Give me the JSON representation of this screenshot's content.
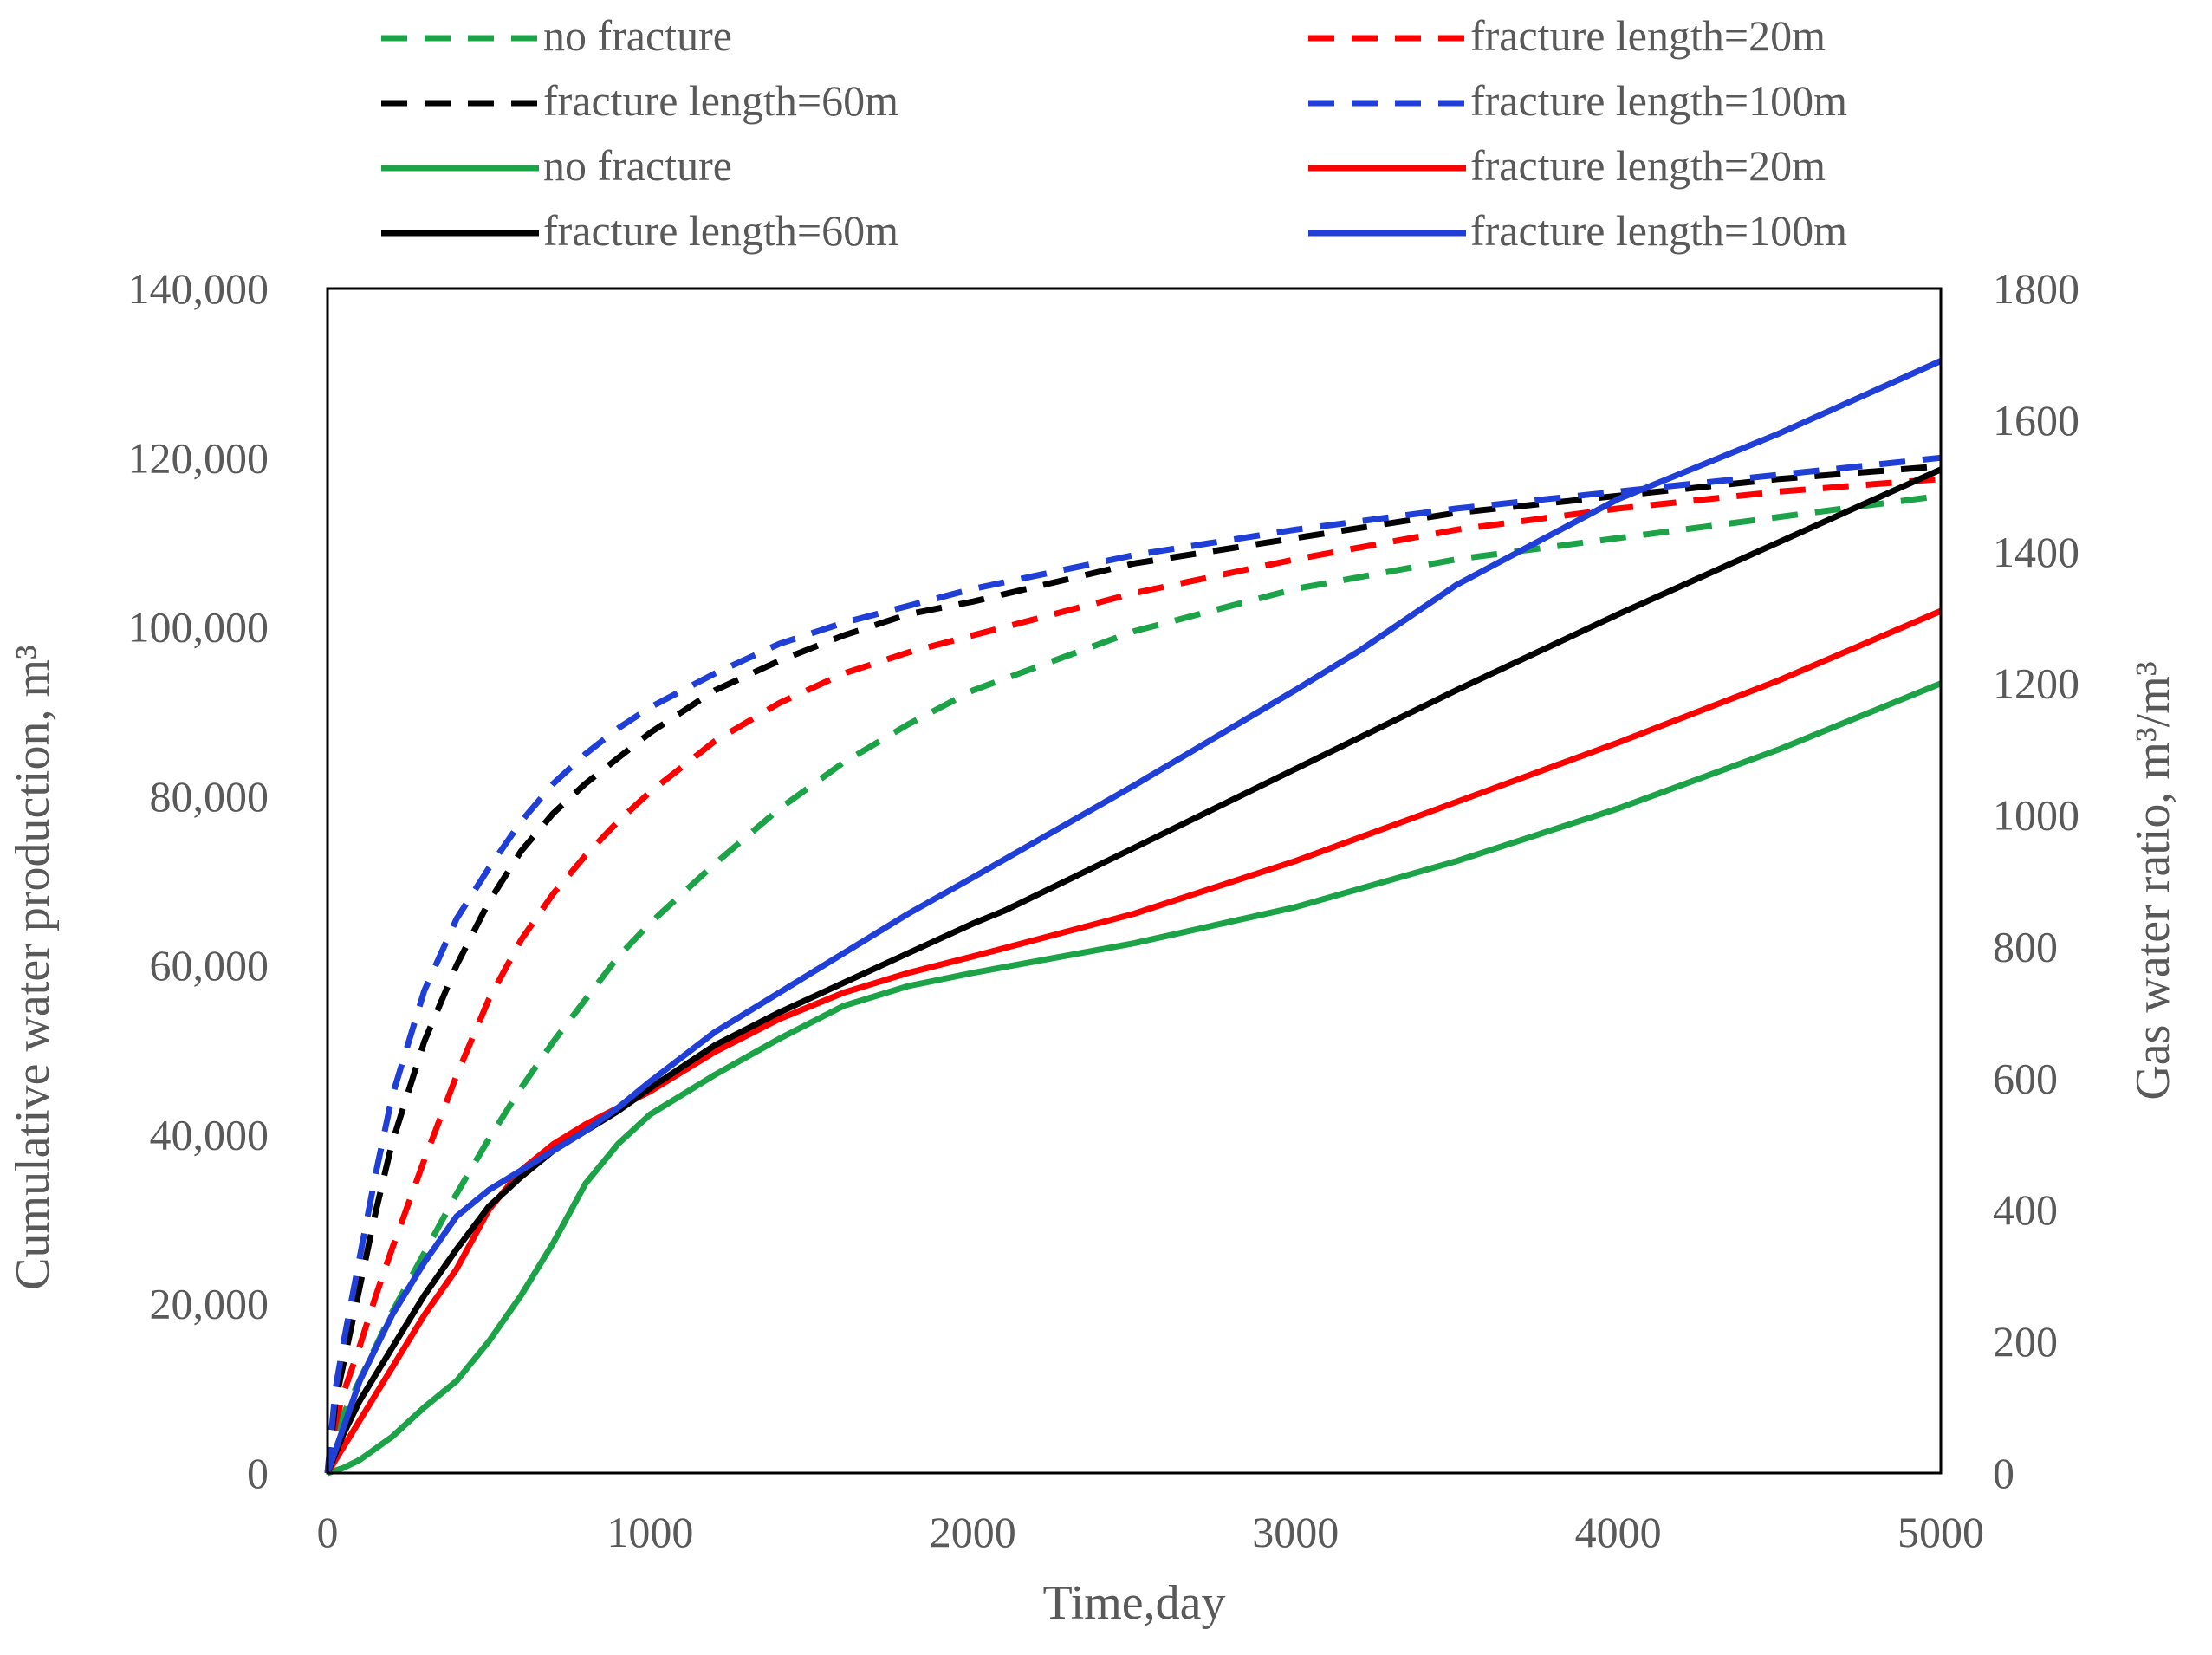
{
  "chart_data": {
    "type": "line",
    "title": "",
    "x_axis": {
      "label": "Time,day",
      "range": [
        0,
        5000
      ],
      "ticks": [
        0,
        1000,
        2000,
        3000,
        4000,
        5000
      ]
    },
    "y_axis_left": {
      "label": "Cumulative water production, m³",
      "range": [
        0,
        140000
      ],
      "ticks": [
        0,
        20000,
        40000,
        60000,
        80000,
        100000,
        120000,
        140000
      ],
      "tick_labels": [
        "0",
        "20,000",
        "40,000",
        "60,000",
        "80,000",
        "100,000",
        "120,000",
        "140,000"
      ]
    },
    "y_axis_right": {
      "label": "Gas water ratio, m³/m³",
      "range": [
        0,
        1800
      ],
      "ticks": [
        0,
        200,
        400,
        600,
        800,
        1000,
        1200,
        1400,
        1600,
        1800
      ],
      "tick_labels": [
        "0",
        "200",
        "400",
        "600",
        "800",
        "1000",
        "1200",
        "1400",
        "1600",
        "1800"
      ]
    },
    "grid": false,
    "legend_position": "top",
    "series": [
      {
        "name": "no fracture",
        "style": "dashed",
        "axis": "left",
        "color": "#1da347",
        "x": [
          0,
          25,
          50,
          100,
          150,
          200,
          300,
          400,
          500,
          600,
          700,
          800,
          900,
          1000,
          1200,
          1400,
          1600,
          1800,
          2000,
          2500,
          3000,
          3500,
          4000,
          4500,
          5000
        ],
        "y": [
          0,
          4500,
          7000,
          11000,
          15000,
          19000,
          26000,
          33000,
          39500,
          45500,
          51000,
          56000,
          61000,
          65000,
          72000,
          78500,
          84000,
          88500,
          92500,
          99500,
          104500,
          108000,
          110500,
          113000,
          115500
        ]
      },
      {
        "name": "fracture length=20m",
        "style": "dashed",
        "axis": "left",
        "color": "#ff0000",
        "x": [
          0,
          25,
          50,
          100,
          150,
          200,
          300,
          400,
          500,
          600,
          700,
          800,
          900,
          1000,
          1200,
          1400,
          1600,
          1800,
          2000,
          2500,
          3000,
          3500,
          4000,
          4500,
          5000
        ],
        "y": [
          0,
          6000,
          9500,
          15000,
          21000,
          26500,
          37000,
          47000,
          56000,
          63000,
          68500,
          73000,
          77000,
          80500,
          86500,
          91000,
          94500,
          97000,
          99000,
          104000,
          108000,
          111500,
          114000,
          116000,
          117500
        ]
      },
      {
        "name": "fracture length=60m",
        "style": "dashed",
        "axis": "left",
        "color": "#000000",
        "x": [
          0,
          25,
          50,
          100,
          150,
          200,
          300,
          400,
          500,
          600,
          700,
          800,
          900,
          1000,
          1200,
          1400,
          1600,
          1800,
          2000,
          2500,
          3000,
          3500,
          4000,
          4500,
          5000
        ],
        "y": [
          0,
          8500,
          13000,
          22000,
          31000,
          39000,
          51000,
          60000,
          67500,
          73500,
          78000,
          81500,
          84500,
          87500,
          92500,
          96000,
          99000,
          101500,
          103000,
          107500,
          110500,
          113500,
          115500,
          117500,
          119000
        ]
      },
      {
        "name": "fracture length=100m",
        "style": "dashed",
        "axis": "left",
        "color": "#1f3fd6",
        "x": [
          0,
          25,
          50,
          100,
          150,
          200,
          300,
          400,
          500,
          600,
          700,
          800,
          900,
          1000,
          1200,
          1400,
          1600,
          1800,
          2000,
          2500,
          3000,
          3500,
          4000,
          4500,
          5000
        ],
        "y": [
          0,
          10000,
          15500,
          25500,
          35500,
          44500,
          57000,
          65500,
          71500,
          77000,
          81500,
          85000,
          88000,
          90500,
          94500,
          98000,
          100500,
          102500,
          104500,
          108500,
          111500,
          114000,
          116000,
          118000,
          120000
        ]
      },
      {
        "name": "no fracture",
        "style": "solid",
        "axis": "right",
        "color": "#1da347",
        "x": [
          0,
          50,
          100,
          200,
          300,
          400,
          500,
          600,
          700,
          800,
          900,
          1000,
          1200,
          1400,
          1600,
          1800,
          2000,
          2500,
          3000,
          3500,
          4000,
          4500,
          5000
        ],
        "y": [
          0,
          8,
          20,
          55,
          100,
          140,
          200,
          270,
          350,
          440,
          500,
          545,
          605,
          660,
          710,
          740,
          760,
          805,
          860,
          930,
          1010,
          1100,
          1200
        ]
      },
      {
        "name": "fracture length=20m",
        "style": "solid",
        "axis": "right",
        "color": "#ff0000",
        "x": [
          0,
          50,
          100,
          200,
          300,
          400,
          500,
          600,
          700,
          800,
          900,
          1000,
          1200,
          1400,
          1600,
          1800,
          2000,
          2500,
          3000,
          3500,
          4000,
          4500,
          5000
        ],
        "y": [
          0,
          40,
          80,
          160,
          240,
          310,
          400,
          460,
          500,
          530,
          555,
          580,
          640,
          690,
          730,
          760,
          785,
          850,
          930,
          1020,
          1110,
          1205,
          1310
        ]
      },
      {
        "name": "fracture length=60m",
        "style": "solid",
        "axis": "right",
        "color": "#000000",
        "x": [
          0,
          50,
          100,
          200,
          300,
          400,
          500,
          600,
          700,
          800,
          900,
          1000,
          1200,
          1400,
          1600,
          1800,
          2000,
          2100,
          2500,
          3000,
          3500,
          4000,
          4500,
          5000
        ],
        "y": [
          0,
          60,
          110,
          190,
          270,
          340,
          405,
          450,
          490,
          520,
          550,
          585,
          650,
          700,
          745,
          790,
          835,
          855,
          950,
          1070,
          1190,
          1305,
          1415,
          1525
        ]
      },
      {
        "name": "fracture length=100m",
        "style": "solid",
        "axis": "right",
        "color": "#1f3fd6",
        "x": [
          0,
          50,
          100,
          200,
          300,
          400,
          500,
          600,
          700,
          800,
          900,
          1000,
          1200,
          1400,
          1600,
          1800,
          2000,
          2500,
          3000,
          3200,
          3500,
          4000,
          4500,
          5000
        ],
        "y": [
          0,
          70,
          140,
          240,
          320,
          390,
          430,
          460,
          490,
          520,
          555,
          595,
          670,
          730,
          790,
          850,
          905,
          1045,
          1190,
          1250,
          1350,
          1480,
          1580,
          1690
        ]
      }
    ]
  }
}
